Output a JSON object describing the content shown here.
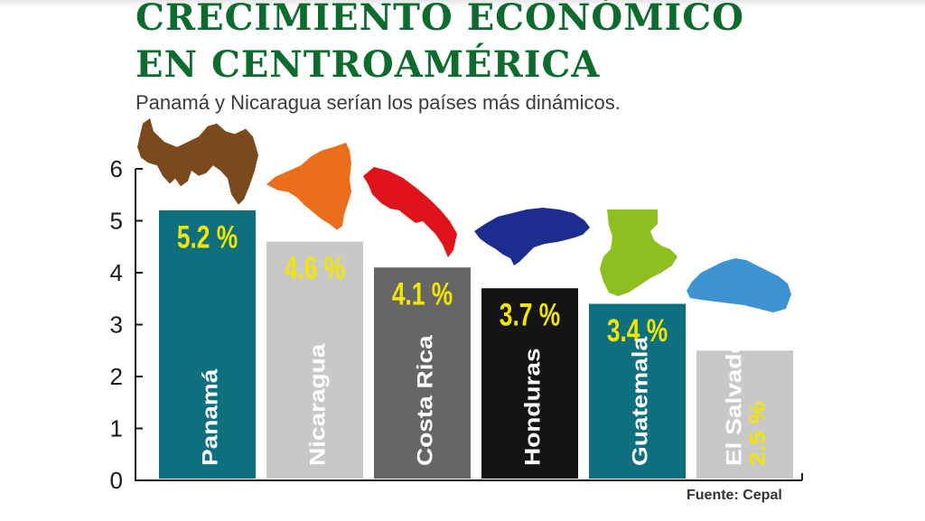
{
  "title_line1": "CRECIMIENTO ECONÓMICO",
  "title_line2": "EN CENTROAMÉRICA",
  "subtitle": "Panamá y Nicaragua serían los países más dinámicos.",
  "source": "Fuente: Cepal",
  "colors": {
    "title": "#0d6b2e",
    "value_label": "#f2e600",
    "country_label": "#ffffff",
    "axis": "#1a1a1a"
  },
  "chart_data": {
    "type": "bar",
    "title": "CRECIMIENTO ECONÓMICO EN CENTROAMÉRICA",
    "subtitle": "Panamá y Nicaragua serían los países más dinámicos.",
    "categories": [
      "Panamá",
      "Nicaragua",
      "Costa Rica",
      "Honduras",
      "Guatemala",
      "El Salvador"
    ],
    "values": [
      5.2,
      4.6,
      4.1,
      3.7,
      3.4,
      2.5
    ],
    "value_labels": [
      "5.2 %",
      "4.6 %",
      "4.1 %",
      "3.7 %",
      "3.4 %",
      "2.5 %"
    ],
    "bar_colors": [
      "#0e6f7e",
      "#c8c8c8",
      "#666666",
      "#141414",
      "#0e6f7e",
      "#c8c8c8"
    ],
    "map_icon_colors": [
      "#7a4a1e",
      "#ea6e1b",
      "#e0131b",
      "#1d2d8f",
      "#8cbf1f",
      "#3d93d1"
    ],
    "map_icon_names": [
      "panama-map-icon",
      "nicaragua-map-icon",
      "costa-rica-map-icon",
      "honduras-map-icon",
      "guatemala-map-icon",
      "el-salvador-map-icon"
    ],
    "yticks": [
      0,
      1,
      2,
      3,
      4,
      5,
      6
    ],
    "ylim": [
      0,
      6
    ],
    "xlabel": "",
    "ylabel": "",
    "grid": false,
    "legend": "none"
  }
}
